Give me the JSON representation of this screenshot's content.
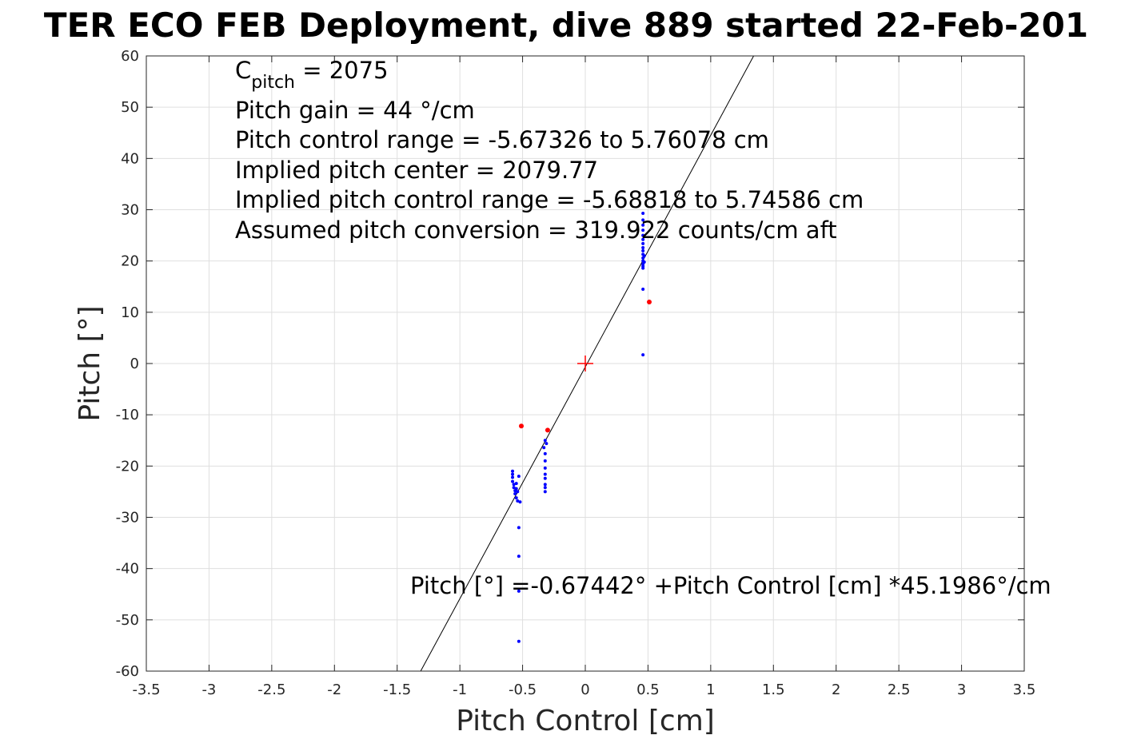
{
  "chart_data": {
    "type": "scatter",
    "title": "TER ECO FEB Deployment, dive 889 started 22-Feb-201",
    "xlabel": "Pitch Control [cm]",
    "ylabel": "Pitch [°]",
    "xlim": [
      -3.5,
      3.5
    ],
    "ylim": [
      -60,
      60
    ],
    "xticks": [
      -3.5,
      -3,
      -2.5,
      -2,
      -1.5,
      -1,
      -0.5,
      0,
      0.5,
      1,
      1.5,
      2,
      2.5,
      3,
      3.5
    ],
    "yticks": [
      -60,
      -50,
      -40,
      -30,
      -20,
      -10,
      0,
      10,
      20,
      30,
      40,
      50,
      60
    ],
    "xtick_labels": [
      "-3.5",
      "-3",
      "-2.5",
      "-2",
      "-1.5",
      "-1",
      "-0.5",
      "0",
      "0.5",
      "1",
      "1.5",
      "2",
      "2.5",
      "3",
      "3.5"
    ],
    "ytick_labels": [
      "-60",
      "-50",
      "-40",
      "-30",
      "-20",
      "-10",
      "0",
      "10",
      "20",
      "30",
      "40",
      "50",
      "60"
    ],
    "grid": true,
    "annotations": {
      "line1_main": "C",
      "line1_sub": "pitch",
      "line1_rest": " = 2075",
      "line2": "Pitch gain = 44 °/cm",
      "line3": "Pitch control range = -5.67326 to 5.76078 cm",
      "line4": "Implied pitch center = 2079.77",
      "line5": "Implied pitch control range = -5.68818 to 5.74586 cm",
      "line6": "Assumed pitch conversion = 319.922 counts/cm aft",
      "fit_text": "Pitch [°] =-0.67442° +Pitch Control [cm] *45.1986°/cm"
    },
    "fit_line": {
      "intercept": -0.67442,
      "slope": 45.1986,
      "color": "#000000"
    },
    "center_marker": {
      "x": 0,
      "y": 0,
      "color": "#ff0000"
    },
    "series": [
      {
        "color": "#0000ff",
        "marker_radius": 2,
        "points": [
          [
            0.46,
            29.3
          ],
          [
            0.46,
            28.0
          ],
          [
            0.46,
            27.0
          ],
          [
            0.46,
            26.0
          ],
          [
            0.46,
            25.0
          ],
          [
            0.46,
            24.2
          ],
          [
            0.46,
            23.4
          ],
          [
            0.46,
            22.6
          ],
          [
            0.46,
            22.0
          ],
          [
            0.46,
            21.3
          ],
          [
            0.46,
            20.6
          ],
          [
            0.46,
            20.0
          ],
          [
            0.46,
            19.4
          ],
          [
            0.46,
            19.0
          ],
          [
            0.46,
            18.6
          ],
          [
            0.47,
            19.8
          ],
          [
            0.47,
            21.0
          ],
          [
            0.46,
            14.5
          ],
          [
            0.46,
            1.7
          ],
          [
            -0.32,
            -15.0
          ],
          [
            -0.31,
            -15.6
          ],
          [
            -0.33,
            -16.4
          ],
          [
            -0.32,
            -17.6
          ],
          [
            -0.32,
            -19.0
          ],
          [
            -0.32,
            -20.4
          ],
          [
            -0.32,
            -21.6
          ],
          [
            -0.32,
            -22.4
          ],
          [
            -0.32,
            -23.6
          ],
          [
            -0.32,
            -24.2
          ],
          [
            -0.32,
            -25.0
          ],
          [
            -0.58,
            -21.0
          ],
          [
            -0.58,
            -21.6
          ],
          [
            -0.58,
            -22.2
          ],
          [
            -0.58,
            -23.0
          ],
          [
            -0.57,
            -23.6
          ],
          [
            -0.57,
            -24.2
          ],
          [
            -0.56,
            -24.8
          ],
          [
            -0.56,
            -25.4
          ],
          [
            -0.55,
            -23.4
          ],
          [
            -0.55,
            -24.4
          ],
          [
            -0.54,
            -25.0
          ],
          [
            -0.55,
            -26.2
          ],
          [
            -0.53,
            -22.0
          ],
          [
            -0.54,
            -26.8
          ],
          [
            -0.52,
            -27.0
          ],
          [
            -0.53,
            -32.0
          ],
          [
            -0.53,
            -37.6
          ],
          [
            -0.53,
            -44.4
          ],
          [
            -0.53,
            -54.2
          ]
        ]
      },
      {
        "color": "#ff0000",
        "marker_radius": 3,
        "points": [
          [
            0.51,
            12.0
          ],
          [
            -0.51,
            -12.2
          ],
          [
            -0.3,
            -13.0
          ]
        ]
      }
    ]
  }
}
